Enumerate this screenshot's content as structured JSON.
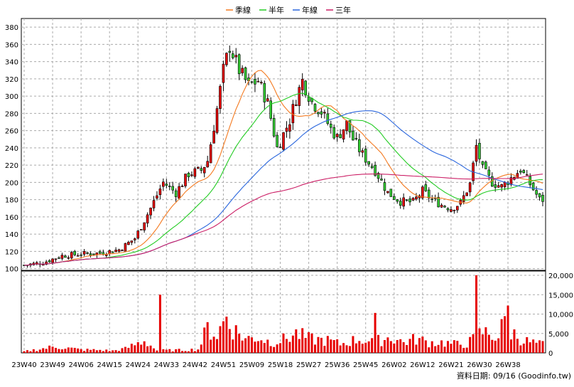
{
  "chart_data": {
    "type": "candlestick",
    "legend": [
      {
        "name": "季線",
        "color": "#f47a20"
      },
      {
        "name": "半年",
        "color": "#22cc22"
      },
      {
        "name": "年線",
        "color": "#2a66dd"
      },
      {
        "name": "三年",
        "color": "#cc1f66"
      }
    ],
    "price_axis": {
      "ylim": [
        98,
        390
      ],
      "ticks": [
        100,
        120,
        140,
        160,
        180,
        200,
        220,
        240,
        260,
        280,
        300,
        320,
        340,
        360,
        380
      ]
    },
    "volume_axis": {
      "ylim": [
        0,
        20000
      ],
      "ticks": [
        0,
        5000,
        10000,
        15000,
        20000
      ],
      "tick_labels": [
        "0",
        "5,000",
        "10,000",
        "15,000",
        "20,000"
      ]
    },
    "x_tick_labels": [
      "23W40",
      "23W49",
      "24W06",
      "24W15",
      "24W24",
      "24W33",
      "24W42",
      "24W51",
      "25W09",
      "25W18",
      "25W27",
      "25W36",
      "25W45",
      "26W02",
      "26W12",
      "26W21",
      "26W30",
      "26W38"
    ],
    "weeks_between_labels": 9,
    "price_anchors": [
      [
        0,
        104
      ],
      [
        6,
        107
      ],
      [
        12,
        115
      ],
      [
        18,
        117
      ],
      [
        24,
        118
      ],
      [
        30,
        122
      ],
      [
        35,
        135
      ],
      [
        40,
        170
      ],
      [
        44,
        200
      ],
      [
        48,
        188
      ],
      [
        52,
        210
      ],
      [
        56,
        214
      ],
      [
        58,
        225
      ],
      [
        61,
        285
      ],
      [
        63,
        330
      ],
      [
        65,
        358
      ],
      [
        68,
        330
      ],
      [
        71,
        312
      ],
      [
        74,
        318
      ],
      [
        77,
        292
      ],
      [
        80,
        240
      ],
      [
        84,
        272
      ],
      [
        86,
        298
      ],
      [
        88,
        318
      ],
      [
        91,
        293
      ],
      [
        94,
        282
      ],
      [
        97,
        262
      ],
      [
        99,
        252
      ],
      [
        102,
        268
      ],
      [
        104,
        250
      ],
      [
        107,
        232
      ],
      [
        111,
        214
      ],
      [
        115,
        188
      ],
      [
        119,
        178
      ],
      [
        123,
        177
      ],
      [
        126,
        190
      ],
      [
        129,
        180
      ],
      [
        132,
        174
      ],
      [
        135,
        170
      ],
      [
        138,
        176
      ],
      [
        141,
        198
      ],
      [
        143,
        242
      ],
      [
        145,
        215
      ],
      [
        148,
        200
      ],
      [
        151,
        195
      ],
      [
        154,
        205
      ],
      [
        157,
        215
      ],
      [
        160,
        198
      ],
      [
        163,
        180
      ]
    ],
    "overlay_lines": [
      "季線",
      "半年",
      "年線",
      "三年"
    ],
    "volume_anchors": [
      [
        0,
        400
      ],
      [
        10,
        1800
      ],
      [
        18,
        900
      ],
      [
        24,
        800
      ],
      [
        28,
        600
      ],
      [
        32,
        1200
      ],
      [
        38,
        3500
      ],
      [
        42,
        700
      ],
      [
        50,
        800
      ],
      [
        55,
        1000
      ],
      [
        58,
        7000
      ],
      [
        61,
        5000
      ],
      [
        64,
        10500
      ],
      [
        66,
        7000
      ],
      [
        70,
        4000
      ],
      [
        74,
        4500
      ],
      [
        78,
        3000
      ],
      [
        82,
        3800
      ],
      [
        86,
        5500
      ],
      [
        90,
        4000
      ],
      [
        96,
        3500
      ],
      [
        100,
        2500
      ],
      [
        106,
        4000
      ],
      [
        110,
        3000
      ],
      [
        116,
        4500
      ],
      [
        120,
        3000
      ],
      [
        124,
        4000
      ],
      [
        128,
        3000
      ],
      [
        132,
        3000
      ],
      [
        136,
        2500
      ],
      [
        140,
        2500
      ],
      [
        145,
        6000
      ],
      [
        150,
        4500
      ],
      [
        152,
        9500
      ],
      [
        154,
        6000
      ],
      [
        158,
        3500
      ],
      [
        163,
        2500
      ]
    ],
    "volume_spikes": [
      [
        43,
        15000
      ],
      [
        111,
        10300
      ],
      [
        143,
        20000
      ],
      [
        153,
        12200
      ]
    ],
    "footer_text": "資料日期: 09/16  (Goodinfo.tw)"
  }
}
